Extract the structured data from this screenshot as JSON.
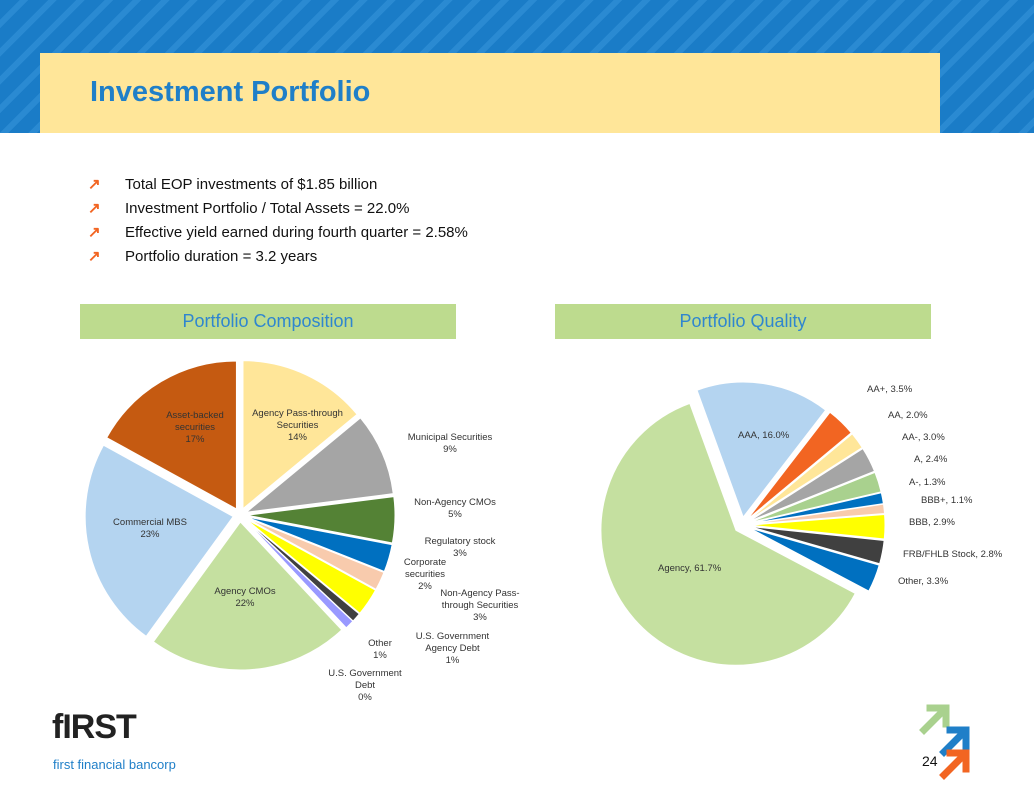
{
  "header": {
    "title": "Investment Portfolio"
  },
  "bullets": [
    "Total EOP investments of $1.85 billion",
    "Investment Portfolio / Total Assets = 22.0%",
    "Effective yield earned during fourth quarter = 2.58%",
    "Portfolio duration = 3.2 years"
  ],
  "chart_data": [
    {
      "type": "pie",
      "title": "Portfolio Composition",
      "categories": [
        "Agency Pass-through Securities",
        "Municipal Securities",
        "Non-Agency CMOs",
        "Regulatory stock",
        "Corporate securities",
        "Non-Agency Pass-through Securities",
        "U.S. Government Agency Debt",
        "Other",
        "U.S. Government Debt",
        "Agency CMOs",
        "Commercial MBS",
        "Asset-backed securities"
      ],
      "values": [
        14,
        9,
        5,
        3,
        2,
        3,
        1,
        1,
        0,
        22,
        23,
        17
      ],
      "value_labels": [
        "14%",
        "9%",
        "5%",
        "3%",
        "2%",
        "3%",
        "1%",
        "1%",
        "0%",
        "22%",
        "23%",
        "17%"
      ],
      "colors": [
        "#ffe699",
        "#a5a5a5",
        "#548235",
        "#0070c0",
        "#f8cbad",
        "#ffff00",
        "#404040",
        "#9999ff",
        "#bfbfbf",
        "#c5e0a0",
        "#b4d4f0",
        "#c55a11"
      ]
    },
    {
      "type": "pie",
      "title": "Portfolio Quality",
      "values": [
        16.0,
        3.5,
        2.0,
        3.0,
        2.4,
        1.3,
        1.1,
        2.9,
        2.8,
        3.3,
        61.7
      ],
      "value_labels": [
        "AAA, 16.0%",
        "AA+, 3.5%",
        "AA, 2.0%",
        "AA-, 3.0%",
        "A, 2.4%",
        "A-, 1.3%",
        "BBB+, 1.1%",
        "BBB, 2.9%",
        "FRB/FHLB Stock, 2.8%",
        "Other, 3.3%",
        "Agency, 61.7%"
      ],
      "colors": [
        "#b4d4f0",
        "#f26522",
        "#ffe699",
        "#a5a5a5",
        "#a9d18e",
        "#0070c0",
        "#f8cbad",
        "#ffff00",
        "#404040",
        "#0070c0",
        "#c5e0a0"
      ]
    }
  ],
  "footer": {
    "logo": "fIRST",
    "company": "first financial bancorp",
    "page": "24"
  }
}
